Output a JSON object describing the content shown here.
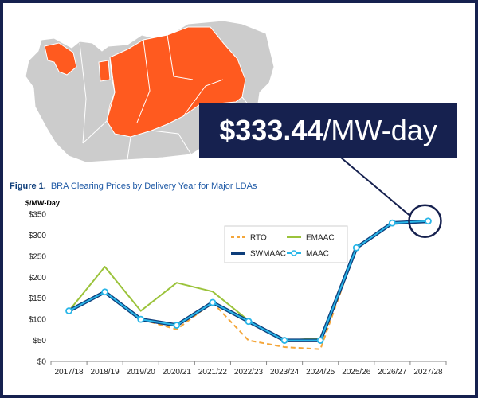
{
  "callout": {
    "amount": "$333.44",
    "unit": "/MW-day"
  },
  "figure": {
    "label": "Figure 1.",
    "caption": "BRA Clearing Prices by Delivery Year for Major LDAs"
  },
  "map": {
    "rto_color": "#cccccc",
    "highlight_color": "#ff5a1f",
    "border_color": "#ffffff"
  },
  "chart_data": {
    "type": "line",
    "title": "BRA Clearing Prices by Delivery Year for Major LDAs",
    "ylabel": "$/MW-Day",
    "xlabel": "",
    "ylim": [
      0,
      350
    ],
    "yticks": [
      "$0",
      "$50",
      "$100",
      "$150",
      "$200",
      "$250",
      "$300",
      "$350"
    ],
    "ytick_values": [
      0,
      50,
      100,
      150,
      200,
      250,
      300,
      350
    ],
    "categories": [
      "2017/18",
      "2018/19",
      "2019/20",
      "2020/21",
      "2021/22",
      "2022/23",
      "2023/24",
      "2024/25",
      "2025/26",
      "2026/27",
      "2027/28"
    ],
    "series": [
      {
        "name": "RTO",
        "color": "#f4a63a",
        "style": "dashed",
        "values": [
          120,
          165,
          100,
          76,
          140,
          50,
          34,
          29,
          270,
          329,
          333
        ]
      },
      {
        "name": "EMAAC",
        "color": "#9bc33b",
        "style": "solid",
        "values": [
          120,
          225,
          120,
          187,
          166,
          97,
          50,
          55,
          270,
          329,
          333
        ]
      },
      {
        "name": "SWMAAC",
        "color": "#0d3d7a",
        "style": "thick",
        "values": [
          120,
          165,
          100,
          86,
          140,
          95,
          50,
          50,
          270,
          329,
          333
        ]
      },
      {
        "name": "MAAC",
        "color": "#29b6e8",
        "style": "marker",
        "values": [
          120,
          165,
          100,
          86,
          140,
          95,
          50,
          50,
          270,
          329,
          333.44
        ]
      }
    ],
    "legend": "inside top, centered"
  }
}
